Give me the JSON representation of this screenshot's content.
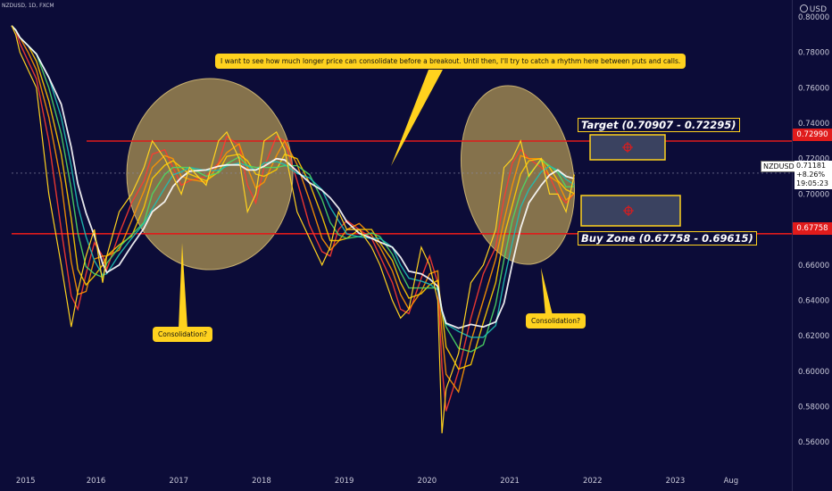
{
  "chart_data": {
    "type": "line",
    "symbol": "NZDUSD, 1D, FXCM",
    "currency": "USD",
    "x_ticks": [
      "2015",
      "2016",
      "2017",
      "2018",
      "2019",
      "2020",
      "2021",
      "2022",
      "2023",
      "Aug"
    ],
    "y_ticks": [
      "0.80000",
      "0.78000",
      "0.76000",
      "0.74000",
      "0.72000",
      "0.70000",
      "0.68000",
      "0.66000",
      "0.64000",
      "0.62000",
      "0.60000",
      "0.58000",
      "0.56000"
    ],
    "ylim": [
      0.5435,
      0.8095
    ],
    "xlim": [
      2015.0,
      2024.6
    ],
    "series": [
      {
        "values": [
          [
            2015.0,
            0.795
          ],
          [
            2015.05,
            0.79
          ],
          [
            2015.1,
            0.78
          ],
          [
            2015.2,
            0.77
          ],
          [
            2015.3,
            0.76
          ],
          [
            2015.45,
            0.7
          ],
          [
            2015.6,
            0.66
          ],
          [
            2015.72,
            0.625
          ],
          [
            2015.8,
            0.645
          ],
          [
            2015.9,
            0.665
          ],
          [
            2016.0,
            0.68
          ],
          [
            2016.1,
            0.65
          ],
          [
            2016.15,
            0.665
          ],
          [
            2016.3,
            0.69
          ],
          [
            2016.45,
            0.7
          ],
          [
            2016.6,
            0.715
          ],
          [
            2016.7,
            0.73
          ],
          [
            2016.85,
            0.72
          ],
          [
            2016.95,
            0.71
          ],
          [
            2017.05,
            0.7
          ],
          [
            2017.15,
            0.715
          ],
          [
            2017.35,
            0.705
          ],
          [
            2017.5,
            0.73
          ],
          [
            2017.6,
            0.735
          ],
          [
            2017.75,
            0.72
          ],
          [
            2017.85,
            0.69
          ],
          [
            2017.95,
            0.7
          ],
          [
            2018.05,
            0.73
          ],
          [
            2018.2,
            0.735
          ],
          [
            2018.3,
            0.725
          ],
          [
            2018.45,
            0.69
          ],
          [
            2018.6,
            0.675
          ],
          [
            2018.75,
            0.66
          ],
          [
            2018.85,
            0.67
          ],
          [
            2018.95,
            0.69
          ],
          [
            2019.05,
            0.68
          ],
          [
            2019.2,
            0.68
          ],
          [
            2019.35,
            0.67
          ],
          [
            2019.45,
            0.66
          ],
          [
            2019.6,
            0.64
          ],
          [
            2019.7,
            0.63
          ],
          [
            2019.8,
            0.635
          ],
          [
            2019.95,
            0.67
          ],
          [
            2020.05,
            0.66
          ],
          [
            2020.15,
            0.64
          ],
          [
            2020.2,
            0.565
          ],
          [
            2020.25,
            0.59
          ],
          [
            2020.4,
            0.61
          ],
          [
            2020.55,
            0.65
          ],
          [
            2020.7,
            0.66
          ],
          [
            2020.85,
            0.68
          ],
          [
            2020.95,
            0.715
          ],
          [
            2021.05,
            0.72
          ],
          [
            2021.15,
            0.73
          ],
          [
            2021.25,
            0.71
          ],
          [
            2021.4,
            0.72
          ],
          [
            2021.5,
            0.7
          ],
          [
            2021.6,
            0.7
          ],
          [
            2021.7,
            0.69
          ],
          [
            2021.8,
            0.711
          ]
        ]
      }
    ],
    "moving_averages": [
      "#ff3b30",
      "#ff9500",
      "#ffcc00",
      "#4cd964",
      "#1ec0b4",
      "#ffffff"
    ],
    "horizontal_levels": [
      {
        "value": 0.7299,
        "label": "0.72990",
        "color": "#e01b1b"
      },
      {
        "value": 0.67758,
        "label": "0.67758",
        "color": "#e01b1b"
      }
    ],
    "target_zone": {
      "label": "Target (0.70907  -  0.72295)",
      "low": 0.70907,
      "high": 0.72295
    },
    "buy_zone": {
      "label": "Buy Zone (0.67758 - 0.69615)",
      "low": 0.67758,
      "high": 0.69615
    },
    "current": {
      "symbol": "NZDUSD",
      "price": "0.71181",
      "change": "+8.26%",
      "countdown": "19:05:23",
      "value": 0.71181
    },
    "annotations": {
      "main_note": "I want to see how much longer price can consolidate before a breakout. Until then, I'll try to catch a rhythm here between puts and calls.",
      "consolidation_left": "Consolidation?",
      "consolidation_right": "Consolidation?"
    },
    "colors": {
      "background": "#0c0c38",
      "price": "#ffd21e",
      "zone_fill": "#3a4260",
      "zone_border": "#ffd21e",
      "level": "#e01b1b"
    }
  }
}
